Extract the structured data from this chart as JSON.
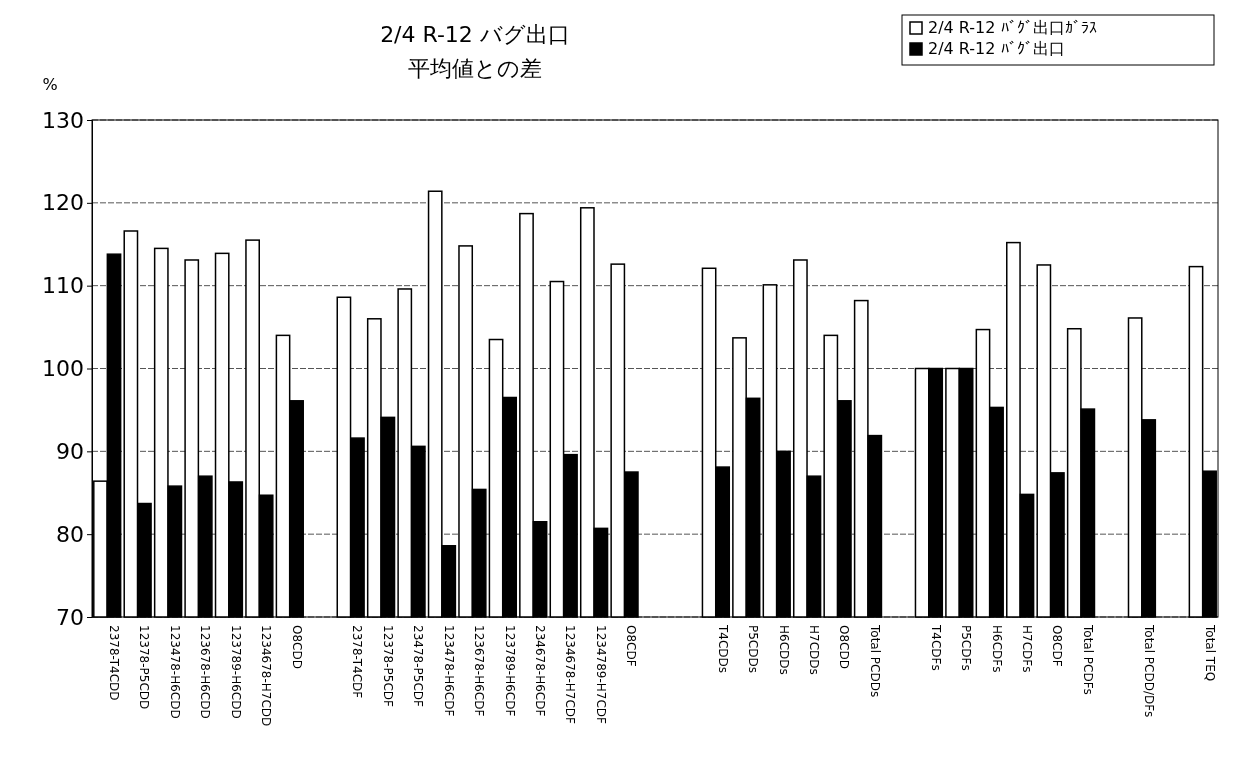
{
  "chart_data": {
    "type": "bar",
    "title": "2/4 R-12 バグ出口",
    "subtitle": "平均値との差",
    "ylabel": "%",
    "categories": [
      "2378-T4CDD",
      "12378-P5CDD",
      "123478-H6CDD",
      "123678-H6CDD",
      "123789-H6CDD",
      "1234678-H7CDD",
      "O8CDD",
      null,
      "2378-T4CDF",
      "12378-P5CDF",
      "23478-P5CDF",
      "123478-H6CDF",
      "123678-H6CDF",
      "123789-H6CDF",
      "234678-H6CDF",
      "1234678-H7CDF",
      "1234789-H7CDF",
      "O8CDF",
      null,
      null,
      "T4CDDs",
      "P5CDDs",
      "H6CDDs",
      "H7CDDs",
      "O8CDD",
      "Total PCDDs",
      null,
      "T4CDFs",
      "P5CDFs",
      "H6CDFs",
      "H7CDFs",
      "O8CDF",
      "Total PCDFs",
      null,
      "Total PCDD/DFs",
      null,
      "Total TEQ"
    ],
    "series": [
      {
        "name": "2/4 R-12 ﾊﾞｸﾞ出口ｶﾞﾗｽ",
        "color": "#ffffff",
        "values": [
          86.4,
          116.6,
          114.5,
          113.1,
          113.9,
          115.5,
          104.0,
          null,
          108.6,
          106.0,
          109.6,
          121.4,
          114.8,
          103.5,
          118.7,
          110.5,
          119.4,
          112.6,
          null,
          null,
          112.1,
          103.7,
          110.1,
          113.1,
          104.0,
          108.2,
          null,
          100,
          100,
          104.7,
          115.2,
          112.5,
          104.8,
          null,
          106.1,
          null,
          112.3
        ]
      },
      {
        "name": "2/4 R-12 ﾊﾞｸﾞ出口",
        "color": "#000000",
        "values": [
          113.8,
          83.7,
          85.8,
          87.0,
          86.3,
          84.7,
          96.1,
          null,
          91.6,
          94.1,
          90.6,
          78.6,
          85.4,
          96.5,
          81.5,
          89.6,
          80.7,
          87.5,
          null,
          null,
          88.1,
          96.4,
          90.0,
          87.0,
          96.1,
          91.9,
          null,
          100,
          100,
          95.3,
          84.8,
          87.4,
          95.1,
          null,
          93.8,
          null,
          87.6
        ]
      }
    ],
    "ylim": [
      70,
      130
    ],
    "yticks": [
      70,
      80,
      90,
      100,
      110,
      120,
      130
    ],
    "grid": "y",
    "legend": "top right"
  }
}
